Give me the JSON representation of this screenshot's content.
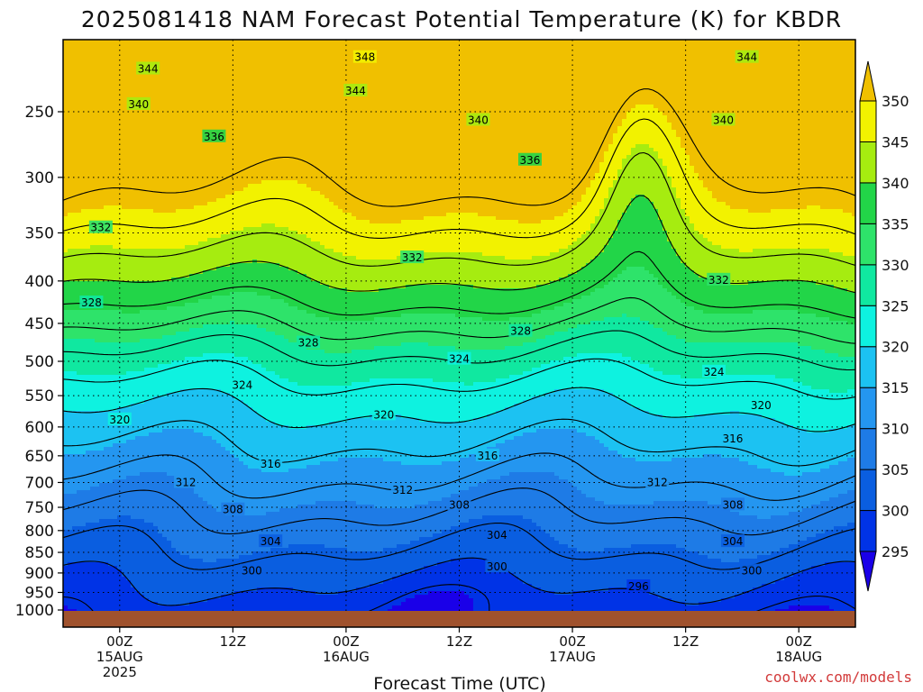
{
  "chart_data": {
    "type": "heatmap",
    "title": "2025081418 NAM Forecast Potential Temperature (K) for KBDR",
    "xlabel": "Forecast Time (UTC)",
    "ylabel": "",
    "y_scale": "log",
    "y_inverted": true,
    "ylim": [
      1000,
      200
    ],
    "y_ticks": [
      250,
      300,
      350,
      400,
      450,
      500,
      550,
      600,
      650,
      700,
      750,
      800,
      850,
      900,
      950,
      1000
    ],
    "x_ticks": [
      {
        "hours": 6,
        "line1": "00Z",
        "line2": "15AUG",
        "line3": "2025"
      },
      {
        "hours": 18,
        "line1": "12Z",
        "line2": "",
        "line3": ""
      },
      {
        "hours": 30,
        "line1": "00Z",
        "line2": "16AUG",
        "line3": ""
      },
      {
        "hours": 42,
        "line1": "12Z",
        "line2": "",
        "line3": ""
      },
      {
        "hours": 54,
        "line1": "00Z",
        "line2": "17AUG",
        "line3": ""
      },
      {
        "hours": 66,
        "line1": "12Z",
        "line2": "",
        "line3": ""
      },
      {
        "hours": 78,
        "line1": "00Z",
        "line2": "18AUG",
        "line3": ""
      }
    ],
    "xlim_hours": [
      0,
      84
    ],
    "grid": true,
    "colorbar": {
      "placement": "right",
      "levels": [
        295,
        300,
        305,
        310,
        315,
        320,
        325,
        330,
        335,
        340,
        345,
        350
      ],
      "colors": [
        "#1a00e8",
        "#0033e6",
        "#0a5ee0",
        "#1e7be6",
        "#2496f0",
        "#1cc2f2",
        "#0ef2e0",
        "#10e8a0",
        "#2ee36a",
        "#22d548",
        "#a6ec10",
        "#f2f200",
        "#f0c000"
      ]
    },
    "contour_interval": 4,
    "contour_labels": [
      {
        "value": 344,
        "hours": 9,
        "p": 222
      },
      {
        "value": 348,
        "hours": 32,
        "p": 215
      },
      {
        "value": 344,
        "hours": 31,
        "p": 236
      },
      {
        "value": 344,
        "hours": 72.5,
        "p": 215
      },
      {
        "value": 340,
        "hours": 8,
        "p": 245
      },
      {
        "value": 340,
        "hours": 44,
        "p": 256
      },
      {
        "value": 340,
        "hours": 70,
        "p": 256
      },
      {
        "value": 336,
        "hours": 16,
        "p": 268
      },
      {
        "value": 336,
        "hours": 49.5,
        "p": 286
      },
      {
        "value": 332,
        "hours": 4,
        "p": 345
      },
      {
        "value": 332,
        "hours": 37,
        "p": 375
      },
      {
        "value": 332,
        "hours": 69.5,
        "p": 399
      },
      {
        "value": 328,
        "hours": 3,
        "p": 425
      },
      {
        "value": 328,
        "hours": 26,
        "p": 475
      },
      {
        "value": 328,
        "hours": 48.5,
        "p": 460
      },
      {
        "value": 324,
        "hours": 19,
        "p": 534
      },
      {
        "value": 324,
        "hours": 42,
        "p": 497
      },
      {
        "value": 324,
        "hours": 69,
        "p": 515
      },
      {
        "value": 320,
        "hours": 6,
        "p": 588
      },
      {
        "value": 320,
        "hours": 34,
        "p": 580
      },
      {
        "value": 320,
        "hours": 74,
        "p": 565
      },
      {
        "value": 316,
        "hours": 22,
        "p": 665
      },
      {
        "value": 316,
        "hours": 45,
        "p": 650
      },
      {
        "value": 316,
        "hours": 71,
        "p": 620
      },
      {
        "value": 312,
        "hours": 13,
        "p": 700
      },
      {
        "value": 312,
        "hours": 36,
        "p": 715
      },
      {
        "value": 312,
        "hours": 63,
        "p": 700
      },
      {
        "value": 308,
        "hours": 18,
        "p": 755
      },
      {
        "value": 308,
        "hours": 42,
        "p": 745
      },
      {
        "value": 308,
        "hours": 71,
        "p": 745
      },
      {
        "value": 304,
        "hours": 22,
        "p": 825
      },
      {
        "value": 304,
        "hours": 46,
        "p": 810
      },
      {
        "value": 304,
        "hours": 71,
        "p": 825
      },
      {
        "value": 300,
        "hours": 20,
        "p": 895
      },
      {
        "value": 300,
        "hours": 46,
        "p": 885
      },
      {
        "value": 300,
        "hours": 73,
        "p": 895
      },
      {
        "value": 296,
        "hours": 61,
        "p": 935
      }
    ]
  },
  "credit": "coolwx.com/models"
}
